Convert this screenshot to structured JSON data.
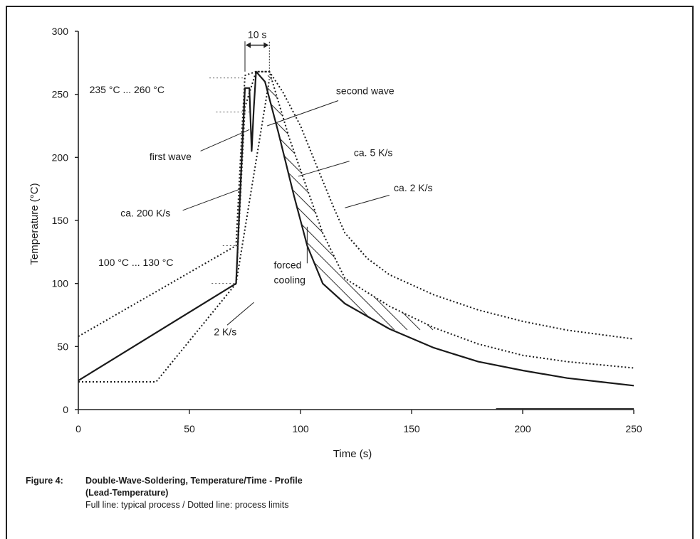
{
  "chart_data": {
    "type": "line",
    "title": "",
    "xlabel": "Time (s)",
    "ylabel": "Temperature (°C)",
    "xlim": [
      0,
      250
    ],
    "ylim": [
      0,
      300
    ],
    "x_ticks": [
      "0",
      "50",
      "100",
      "150",
      "200",
      "250"
    ],
    "y_ticks": [
      "0",
      "50",
      "100",
      "150",
      "200",
      "250",
      "300"
    ],
    "x_tick_values": [
      0,
      50,
      100,
      150,
      200,
      250
    ],
    "y_tick_values": [
      0,
      50,
      100,
      150,
      200,
      250,
      300
    ],
    "grid": false,
    "series": [
      {
        "style": "solid",
        "points": [
          [
            0,
            23
          ],
          [
            71,
            100
          ],
          [
            75,
            255
          ],
          [
            77,
            255
          ],
          [
            78,
            205
          ],
          [
            79,
            240
          ],
          [
            80,
            268
          ],
          [
            84,
            260
          ],
          [
            90,
            220
          ],
          [
            97,
            170
          ],
          [
            103,
            130
          ],
          [
            110,
            100
          ],
          [
            120,
            84
          ],
          [
            140,
            64
          ],
          [
            160,
            49
          ],
          [
            180,
            38
          ],
          [
            200,
            31
          ],
          [
            220,
            25
          ],
          [
            235,
            22
          ],
          [
            250,
            19
          ]
        ]
      },
      {
        "style": "dotted",
        "points": [
          [
            0,
            58
          ],
          [
            71,
            130
          ],
          [
            73,
            200
          ],
          [
            75,
            265
          ],
          [
            80,
            268
          ],
          [
            86,
            268
          ],
          [
            92,
            252
          ],
          [
            100,
            225
          ],
          [
            108,
            190
          ],
          [
            115,
            160
          ],
          [
            120,
            140
          ],
          [
            130,
            120
          ],
          [
            140,
            107
          ],
          [
            160,
            91
          ],
          [
            180,
            79
          ],
          [
            200,
            70
          ],
          [
            220,
            63
          ],
          [
            250,
            56
          ]
        ]
      },
      {
        "style": "dotted",
        "points": [
          [
            0,
            22
          ],
          [
            35,
            22
          ],
          [
            71,
            100
          ],
          [
            75,
            240
          ],
          [
            80,
            268
          ],
          [
            86,
            268
          ],
          [
            95,
            215
          ],
          [
            103,
            175
          ],
          [
            110,
            140
          ],
          [
            120,
            104
          ],
          [
            140,
            82
          ],
          [
            160,
            65
          ],
          [
            180,
            52
          ],
          [
            200,
            43
          ],
          [
            220,
            38
          ],
          [
            250,
            33
          ]
        ]
      },
      {
        "style": "dotted",
        "points": [
          [
            71,
            100
          ],
          [
            86,
            262
          ]
        ]
      }
    ],
    "annotations": [
      {
        "text": "10 s",
        "x": 80,
        "y": 300
      },
      {
        "text": "235 °C ... 260 °C",
        "x": 5,
        "y": 251
      },
      {
        "text": "second wave",
        "x": 116,
        "y": 250
      },
      {
        "text": "first wave",
        "x": 32,
        "y": 198
      },
      {
        "text": "ca. 5 K/s",
        "x": 124,
        "y": 201
      },
      {
        "text": "ca. 2 K/s",
        "x": 142,
        "y": 173
      },
      {
        "text": "ca. 200 K/s",
        "x": 19,
        "y": 153
      },
      {
        "text": "100 °C ... 130 °C",
        "x": 9,
        "y": 114
      },
      {
        "text": "forced",
        "x": 88,
        "y": 112
      },
      {
        "text": "cooling",
        "x": 88,
        "y": 100
      },
      {
        "text": "2 K/s",
        "x": 61,
        "y": 59
      }
    ]
  },
  "caption": {
    "label": "Figure 4:",
    "title_line1": "Double-Wave-Soldering, Temperature/Time - Profile",
    "title_line2": "(Lead-Temperature)",
    "note": "Full line: typical process / Dotted line: process limits"
  }
}
